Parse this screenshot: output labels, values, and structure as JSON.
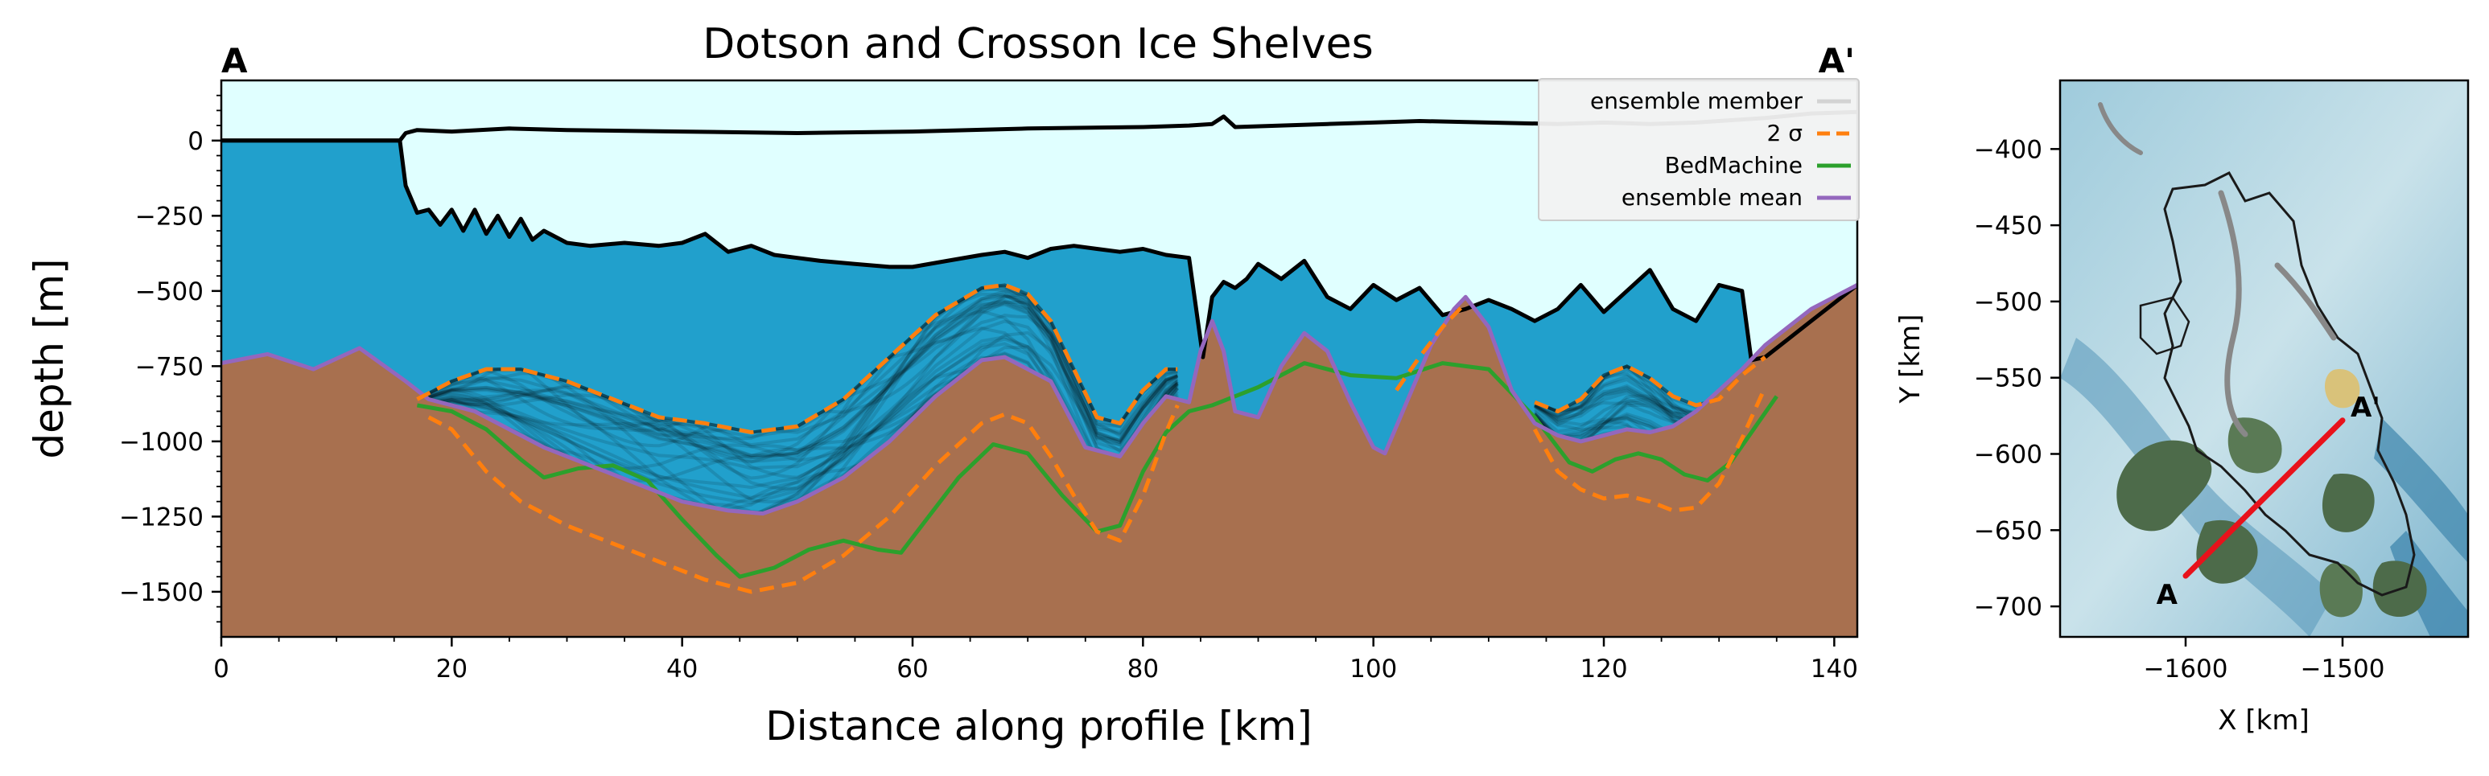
{
  "chart_data": [
    {
      "type": "area",
      "title": "Dotson and Crosson Ice Shelves",
      "xlabel": "Distance along profile [km]",
      "ylabel": "depth [m]",
      "xlim": [
        0,
        142
      ],
      "ylim": [
        -1650,
        200
      ],
      "x_ticks": [
        0,
        20,
        40,
        60,
        80,
        100,
        120,
        140
      ],
      "y_ticks": [
        0,
        -250,
        -500,
        -750,
        -1000,
        -1250,
        -1500
      ],
      "grid": false,
      "corner_labels": {
        "left": "A",
        "right": "A'"
      },
      "legend": {
        "placement": "top-right",
        "entries": [
          {
            "label": "ensemble member",
            "color": "#d3d3d3",
            "style": "solid"
          },
          {
            "label": "2 σ",
            "color": "#ff7f0e",
            "style": "dashed"
          },
          {
            "label": "BedMachine",
            "color": "#2ca02c",
            "style": "solid"
          },
          {
            "label": "ensemble mean",
            "color": "#9467bd",
            "style": "solid"
          }
        ]
      },
      "colors": {
        "air": "#e0ffff",
        "ice": "#000000",
        "ocean": "#21a0cc",
        "bed": "#a8704f",
        "ensemble_members": "#000000",
        "sigma2": "#ff7f0e",
        "bedmachine": "#2ca02c",
        "ensemble_mean": "#9467bd",
        "ice_outline": "#000000"
      },
      "series": [
        {
          "name": "ensemble mean",
          "x": [
            0,
            4,
            8,
            12,
            16,
            18,
            20,
            22,
            25,
            28,
            32,
            36,
            40,
            44,
            47,
            50,
            54,
            58,
            62,
            66,
            68,
            72,
            75,
            78,
            80,
            82,
            84,
            85,
            86,
            87,
            88,
            90,
            92,
            94,
            96,
            98,
            100,
            101,
            103,
            105,
            107,
            108,
            110,
            112,
            114,
            116,
            118,
            120,
            122,
            124,
            126,
            128,
            130,
            132,
            134,
            136,
            138,
            140,
            142
          ],
          "y": [
            -740,
            -710,
            -760,
            -690,
            -800,
            -860,
            -880,
            -900,
            -960,
            -1020,
            -1080,
            -1140,
            -1200,
            -1230,
            -1240,
            -1200,
            -1120,
            -1000,
            -850,
            -730,
            -720,
            -800,
            -1020,
            -1050,
            -940,
            -850,
            -870,
            -700,
            -600,
            -700,
            -900,
            -920,
            -750,
            -640,
            -700,
            -870,
            -1020,
            -1040,
            -860,
            -680,
            -560,
            -520,
            -620,
            -830,
            -940,
            -980,
            -1000,
            -980,
            -960,
            -970,
            -950,
            -900,
            -830,
            -760,
            -680,
            -620,
            -560,
            -520,
            -480
          ]
        },
        {
          "name": "BedMachine",
          "x": [
            17,
            20,
            23,
            26,
            28,
            31,
            34,
            37,
            40,
            43,
            45,
            48,
            51,
            54,
            57,
            59,
            61,
            64,
            67,
            70,
            73,
            76,
            78,
            80,
            82,
            84,
            86,
            90,
            94,
            98,
            102,
            106,
            110,
            114,
            117,
            119,
            121,
            123,
            125,
            127,
            129,
            131,
            133,
            135
          ],
          "y": [
            -880,
            -900,
            -960,
            -1060,
            -1120,
            -1090,
            -1080,
            -1130,
            -1260,
            -1380,
            -1450,
            -1420,
            -1360,
            -1330,
            -1360,
            -1370,
            -1270,
            -1120,
            -1010,
            -1040,
            -1180,
            -1300,
            -1280,
            -1100,
            -970,
            -900,
            -880,
            -820,
            -740,
            -780,
            -790,
            -740,
            -760,
            -920,
            -1070,
            -1100,
            -1060,
            -1040,
            -1060,
            -1110,
            -1130,
            -1070,
            -960,
            -850
          ]
        },
        {
          "name": "2 σ upper",
          "x": [
            17,
            20,
            23,
            26,
            30,
            34,
            38,
            42,
            46,
            50,
            54,
            58,
            62,
            66,
            68,
            70,
            72,
            74,
            76,
            78,
            80,
            82,
            83
          ],
          "y": [
            -860,
            -800,
            -760,
            -760,
            -800,
            -860,
            -920,
            -940,
            -970,
            -950,
            -860,
            -720,
            -580,
            -490,
            -480,
            -510,
            -600,
            -760,
            -920,
            -940,
            -830,
            -760,
            -760
          ]
        },
        {
          "name": "2 σ lower",
          "x": [
            18,
            20,
            23,
            26,
            30,
            34,
            38,
            42,
            46,
            50,
            54,
            58,
            62,
            66,
            68,
            70,
            72,
            74,
            76,
            78,
            80,
            82,
            83
          ],
          "y": [
            -920,
            -960,
            -1100,
            -1200,
            -1280,
            -1340,
            -1400,
            -1460,
            -1500,
            -1470,
            -1380,
            -1250,
            -1080,
            -940,
            -910,
            -940,
            -1050,
            -1180,
            -1300,
            -1330,
            -1180,
            -970,
            -880
          ]
        },
        {
          "name": "2 σ upper (east)",
          "x": [
            102,
            104,
            106,
            108
          ],
          "y": [
            -830,
            -720,
            -620,
            -540
          ]
        },
        {
          "name": "2 σ upper (east 2)",
          "x": [
            114,
            116,
            118,
            120,
            122,
            124,
            126,
            128,
            130,
            132,
            134
          ],
          "y": [
            -870,
            -900,
            -860,
            -780,
            -750,
            -790,
            -850,
            -880,
            -860,
            -780,
            -720
          ]
        },
        {
          "name": "2 σ lower (east)",
          "x": [
            114,
            116,
            118,
            120,
            122,
            124,
            126,
            128,
            130,
            132,
            134
          ],
          "y": [
            -960,
            -1100,
            -1160,
            -1190,
            -1180,
            -1200,
            -1230,
            -1220,
            -1140,
            -990,
            -820
          ]
        },
        {
          "name": "ice surface",
          "x": [
            0,
            15.5,
            16,
            17,
            20,
            25,
            30,
            40,
            50,
            60,
            70,
            80,
            84,
            86,
            87,
            88,
            92,
            96,
            100,
            104,
            110,
            116,
            120,
            124,
            128,
            130,
            132,
            134,
            138,
            142
          ],
          "y": [
            0,
            0,
            25,
            35,
            30,
            40,
            35,
            30,
            25,
            30,
            40,
            45,
            50,
            55,
            80,
            45,
            50,
            55,
            60,
            65,
            60,
            55,
            60,
            55,
            60,
            65,
            70,
            75,
            90,
            95
          ]
        },
        {
          "name": "ice base",
          "x": [
            0,
            15.5,
            16,
            17,
            18,
            19,
            20,
            21,
            22,
            23,
            24,
            25,
            26,
            27,
            28,
            30,
            32,
            35,
            38,
            40,
            42,
            44,
            46,
            48,
            50,
            52,
            55,
            58,
            60,
            63,
            66,
            68,
            70,
            72,
            74,
            76,
            78,
            80,
            82,
            84,
            85.2,
            86,
            87,
            88,
            89,
            90,
            92,
            94,
            96,
            98,
            100,
            102,
            104,
            106,
            108,
            110,
            112,
            114,
            116,
            118,
            120,
            122,
            124,
            126,
            128,
            130,
            132,
            132.8,
            134,
            136,
            138,
            140,
            142
          ],
          "y": [
            0,
            0,
            -150,
            -240,
            -230,
            -280,
            -230,
            -300,
            -230,
            -310,
            -250,
            -320,
            -260,
            -330,
            -300,
            -340,
            -350,
            -340,
            -350,
            -340,
            -310,
            -370,
            -350,
            -380,
            -390,
            -400,
            -410,
            -420,
            -420,
            -400,
            -380,
            -370,
            -390,
            -360,
            -350,
            -360,
            -370,
            -360,
            -380,
            -390,
            -720,
            -520,
            -470,
            -490,
            -460,
            -410,
            -460,
            -400,
            -520,
            -560,
            -480,
            -530,
            -490,
            -580,
            -560,
            -530,
            -560,
            -600,
            -560,
            -480,
            -570,
            -500,
            -430,
            -560,
            -600,
            -480,
            -500,
            -730,
            -720,
            -660,
            -600,
            -540,
            -480
          ]
        }
      ]
    },
    {
      "type": "map",
      "xlabel": "X [km]",
      "ylabel": "Y [km]",
      "xlim": [
        -1680,
        -1420
      ],
      "ylim": [
        -720,
        -355
      ],
      "x_ticks": [
        -1600,
        -1500
      ],
      "y_ticks": [
        -400,
        -450,
        -500,
        -550,
        -600,
        -650,
        -700
      ],
      "profile_line": {
        "start": {
          "label": "A",
          "x": -1600,
          "y": -680
        },
        "end": {
          "label": "A'",
          "x": -1500,
          "y": -578
        },
        "color": "#e8121b"
      },
      "colors": {
        "background": "#bcd9e3",
        "deep_channel": "#3f86ad",
        "land": "#4d6b4a",
        "outline": "#1a1a1a",
        "grounding_line": "#888888"
      }
    }
  ]
}
